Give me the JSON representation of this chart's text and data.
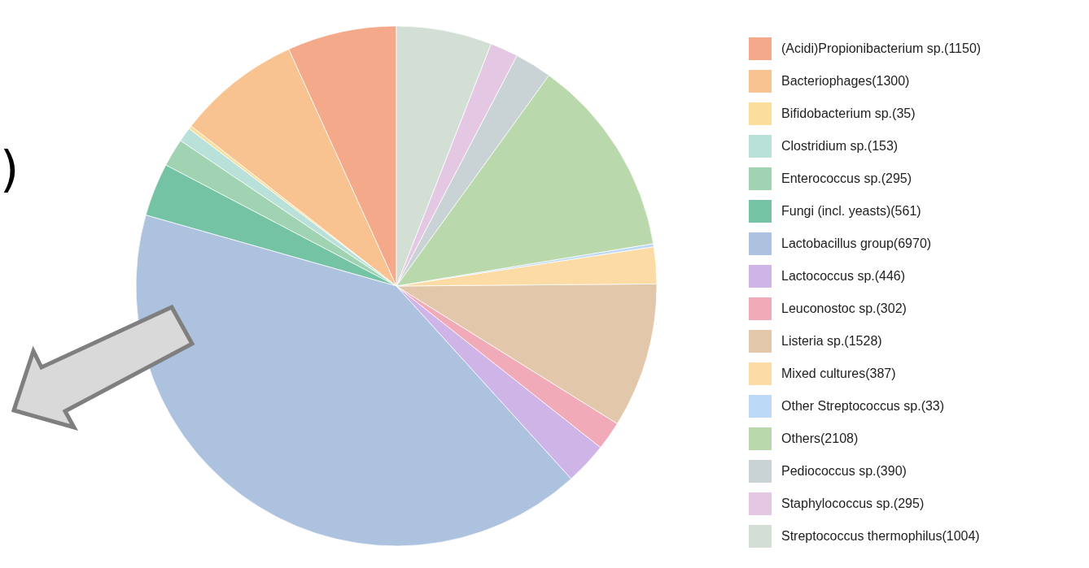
{
  "chart_data": {
    "type": "pie",
    "categories": [
      "(Acidi)Propionibacterium sp.(1150)",
      "Bacteriophages(1300)",
      "Bifidobacterium sp.(35)",
      "Clostridium sp.(153)",
      "Enterococcus sp.(295)",
      "Fungi (incl. yeasts)(561)",
      "Lactobacillus group(6970)",
      "Lactococcus sp.(446)",
      "Leuconostoc sp.(302)",
      "Listeria sp.(1528)",
      "Mixed cultures(387)",
      "Other Streptococcus sp.(33)",
      "Others(2108)",
      "Pediococcus sp.(390)",
      "Staphylococcus sp.(295)",
      "Streptococcus thermophilus(1004)"
    ],
    "values": [
      1150,
      1300,
      35,
      153,
      295,
      561,
      6970,
      446,
      302,
      1528,
      387,
      33,
      2108,
      390,
      295,
      1004
    ],
    "colors": [
      "#f4a98a",
      "#f9c391",
      "#fbdd9c",
      "#b9e1da",
      "#9fd3b1",
      "#74c3a5",
      "#adc2de",
      "#cfb4e8",
      "#f0aab8",
      "#e3c7ab",
      "#fcdca4",
      "#bcd9f7",
      "#b9d8ab",
      "#c9d3d5",
      "#e4c7e2",
      "#d3dfd4"
    ],
    "legend": "right",
    "annotations": [
      ")"
    ]
  }
}
